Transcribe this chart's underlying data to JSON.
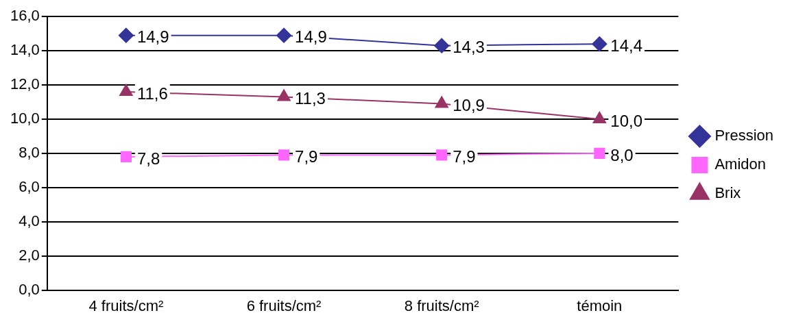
{
  "chart_data": {
    "type": "line",
    "categories": [
      "4 fruits/cm²",
      "6 fruits/cm²",
      "8 fruits/cm²",
      "témoin"
    ],
    "series": [
      {
        "name": "Pression",
        "color": "#333399",
        "marker": "diamond",
        "values": [
          14.9,
          14.9,
          14.3,
          14.4
        ],
        "value_labels": [
          "14,9",
          "14,9",
          "14,3",
          "14,4"
        ]
      },
      {
        "name": "Amidon",
        "color": "#ff66ff",
        "marker": "square",
        "values": [
          7.8,
          7.9,
          7.9,
          8.0
        ],
        "value_labels": [
          "7,8",
          "7,9",
          "7,9",
          "8,0"
        ]
      },
      {
        "name": "Brix",
        "color": "#993366",
        "marker": "triangle",
        "values": [
          11.6,
          11.3,
          10.9,
          10.0
        ],
        "value_labels": [
          "11,6",
          "11,3",
          "10,9",
          "10,0"
        ]
      }
    ],
    "ylim": [
      0,
      16
    ],
    "yticks": [
      {
        "value": 0,
        "label": "0,0"
      },
      {
        "value": 2,
        "label": "2,0"
      },
      {
        "value": 4,
        "label": "4,0"
      },
      {
        "value": 6,
        "label": "6,0"
      },
      {
        "value": 8,
        "label": "8,0"
      },
      {
        "value": 10,
        "label": "10,0"
      },
      {
        "value": 12,
        "label": "12,0"
      },
      {
        "value": 14,
        "label": "14,0"
      },
      {
        "value": 16,
        "label": "16,0"
      }
    ],
    "grid": "y",
    "legend": "right"
  }
}
